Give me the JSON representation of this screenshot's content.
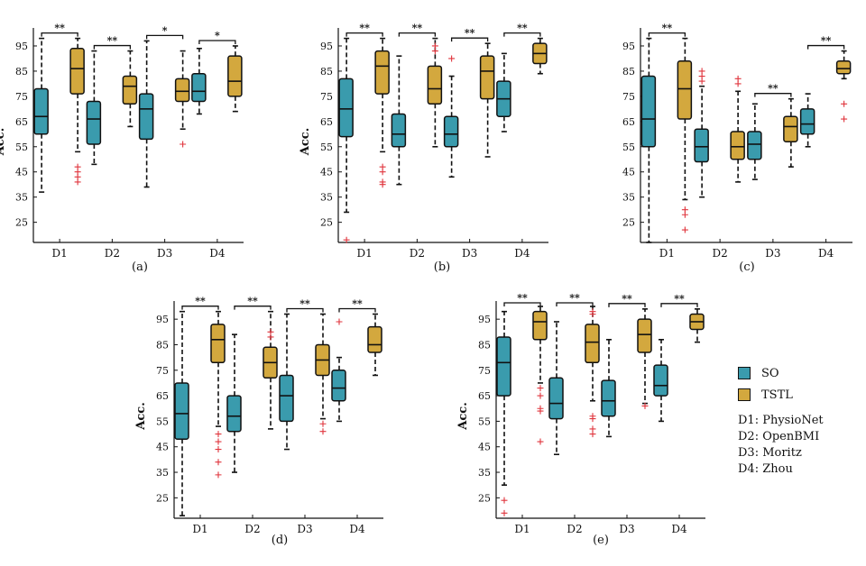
{
  "colors": {
    "so": "#3A9BAD",
    "tstl": "#D3A83E",
    "outlier": "#E0343C",
    "axis": "#111111"
  },
  "legend": {
    "so_label": "SO",
    "tstl_label": "TSTL",
    "dataset_defs": [
      "D1: PhysioNet",
      "D2: OpenBMI",
      "D3: Moritz",
      "D4: Zhou"
    ]
  },
  "chart_data": [
    {
      "type": "box",
      "panel_label": "(a)",
      "ylabel": "Acc.",
      "yticks": [
        25,
        35,
        45,
        55,
        65,
        75,
        85,
        95
      ],
      "ylim": [
        17,
        100
      ],
      "categories": [
        "D1",
        "D2",
        "D3",
        "D4"
      ],
      "significance": [
        "**",
        "**",
        "*",
        "*"
      ],
      "series": [
        {
          "name": "SO",
          "boxes": [
            {
              "min": 37,
              "q1": 60,
              "median": 67,
              "q3": 78,
              "max": 98,
              "outliers": []
            },
            {
              "min": 48,
              "q1": 56,
              "median": 66,
              "q3": 73,
              "max": 93,
              "outliers": []
            },
            {
              "min": 39,
              "q1": 58,
              "median": 70,
              "q3": 76,
              "max": 97,
              "outliers": []
            },
            {
              "min": 68,
              "q1": 73,
              "median": 77,
              "q3": 84,
              "max": 94,
              "outliers": []
            }
          ]
        },
        {
          "name": "TSTL",
          "boxes": [
            {
              "min": 53,
              "q1": 76,
              "median": 86,
              "q3": 94,
              "max": 98,
              "outliers": [
                47,
                45,
                43,
                41
              ]
            },
            {
              "min": 63,
              "q1": 72,
              "median": 79,
              "q3": 83,
              "max": 93,
              "outliers": []
            },
            {
              "min": 62,
              "q1": 73,
              "median": 77,
              "q3": 82,
              "max": 93,
              "outliers": [
                56
              ]
            },
            {
              "min": 69,
              "q1": 75,
              "median": 81,
              "q3": 91,
              "max": 95,
              "outliers": []
            }
          ]
        }
      ]
    },
    {
      "type": "box",
      "panel_label": "(b)",
      "ylabel": "Acc.",
      "yticks": [
        25,
        35,
        45,
        55,
        65,
        75,
        85,
        95
      ],
      "ylim": [
        17,
        100
      ],
      "categories": [
        "D1",
        "D2",
        "D3",
        "D4"
      ],
      "significance": [
        "**",
        "**",
        "**",
        "**"
      ],
      "series": [
        {
          "name": "SO",
          "boxes": [
            {
              "min": 29,
              "q1": 59,
              "median": 70,
              "q3": 82,
              "max": 98,
              "outliers": [
                18
              ]
            },
            {
              "min": 40,
              "q1": 55,
              "median": 60,
              "q3": 68,
              "max": 91,
              "outliers": []
            },
            {
              "min": 43,
              "q1": 55,
              "median": 60,
              "q3": 67,
              "max": 83,
              "outliers": [
                90
              ]
            },
            {
              "min": 61,
              "q1": 67,
              "median": 74,
              "q3": 81,
              "max": 92,
              "outliers": []
            }
          ]
        },
        {
          "name": "TSTL",
          "boxes": [
            {
              "min": 53,
              "q1": 76,
              "median": 87,
              "q3": 93,
              "max": 98,
              "outliers": [
                47,
                45,
                41,
                40
              ]
            },
            {
              "min": 55,
              "q1": 72,
              "median": 78,
              "q3": 87,
              "max": 98,
              "outliers": [
                95,
                93
              ]
            },
            {
              "min": 51,
              "q1": 74,
              "median": 85,
              "q3": 91,
              "max": 96,
              "outliers": []
            },
            {
              "min": 84,
              "q1": 88,
              "median": 92,
              "q3": 96,
              "max": 98,
              "outliers": []
            }
          ]
        }
      ]
    },
    {
      "type": "box",
      "panel_label": "(c)",
      "ylabel": "",
      "yticks": [
        25,
        35,
        45,
        55,
        65,
        75,
        85,
        95
      ],
      "ylim": [
        17,
        100
      ],
      "categories": [
        "D1",
        "D2",
        "D3",
        "D4"
      ],
      "significance": [
        "**",
        "",
        "**",
        "**"
      ],
      "series": [
        {
          "name": "SO",
          "boxes": [
            {
              "min": 17,
              "q1": 55,
              "median": 66,
              "q3": 83,
              "max": 98,
              "outliers": []
            },
            {
              "min": 35,
              "q1": 49,
              "median": 55,
              "q3": 62,
              "max": 79,
              "outliers": [
                85,
                83,
                81
              ]
            },
            {
              "min": 42,
              "q1": 50,
              "median": 56,
              "q3": 61,
              "max": 72,
              "outliers": []
            },
            {
              "min": 55,
              "q1": 60,
              "median": 64,
              "q3": 70,
              "max": 76,
              "outliers": []
            }
          ]
        },
        {
          "name": "TSTL",
          "boxes": [
            {
              "min": 34,
              "q1": 66,
              "median": 78,
              "q3": 89,
              "max": 98,
              "outliers": [
                30,
                28,
                22
              ]
            },
            {
              "min": 41,
              "q1": 50,
              "median": 55,
              "q3": 61,
              "max": 77,
              "outliers": [
                82,
                80
              ]
            },
            {
              "min": 47,
              "q1": 57,
              "median": 63,
              "q3": 67,
              "max": 74,
              "outliers": []
            },
            {
              "min": 82,
              "q1": 84,
              "median": 86,
              "q3": 89,
              "max": 93,
              "outliers": [
                72,
                66
              ]
            }
          ]
        }
      ]
    },
    {
      "type": "box",
      "panel_label": "(d)",
      "ylabel": "Acc.",
      "yticks": [
        25,
        35,
        45,
        55,
        65,
        75,
        85,
        95
      ],
      "ylim": [
        17,
        100
      ],
      "categories": [
        "D1",
        "D2",
        "D3",
        "D4"
      ],
      "significance": [
        "**",
        "**",
        "**",
        "**"
      ],
      "series": [
        {
          "name": "SO",
          "boxes": [
            {
              "min": 18,
              "q1": 48,
              "median": 58,
              "q3": 70,
              "max": 98,
              "outliers": []
            },
            {
              "min": 35,
              "q1": 51,
              "median": 57,
              "q3": 65,
              "max": 89,
              "outliers": []
            },
            {
              "min": 44,
              "q1": 55,
              "median": 65,
              "q3": 73,
              "max": 97,
              "outliers": []
            },
            {
              "min": 55,
              "q1": 63,
              "median": 68,
              "q3": 75,
              "max": 80,
              "outliers": [
                94
              ]
            }
          ]
        },
        {
          "name": "TSTL",
          "boxes": [
            {
              "min": 53,
              "q1": 78,
              "median": 87,
              "q3": 93,
              "max": 98,
              "outliers": [
                50,
                47,
                44,
                39,
                34
              ]
            },
            {
              "min": 52,
              "q1": 72,
              "median": 78,
              "q3": 84,
              "max": 98,
              "outliers": [
                90,
                88
              ]
            },
            {
              "min": 56,
              "q1": 73,
              "median": 79,
              "q3": 85,
              "max": 97,
              "outliers": [
                54,
                51
              ]
            },
            {
              "min": 73,
              "q1": 82,
              "median": 85,
              "q3": 92,
              "max": 97,
              "outliers": []
            }
          ]
        }
      ]
    },
    {
      "type": "box",
      "panel_label": "(e)",
      "ylabel": "Acc.",
      "yticks": [
        25,
        35,
        45,
        55,
        65,
        75,
        85,
        95
      ],
      "ylim": [
        17,
        100
      ],
      "categories": [
        "D1",
        "D2",
        "D3",
        "D4"
      ],
      "significance": [
        "**",
        "**",
        "**",
        "**"
      ],
      "series": [
        {
          "name": "SO",
          "boxes": [
            {
              "min": 30,
              "q1": 65,
              "median": 78,
              "q3": 88,
              "max": 98,
              "outliers": [
                24,
                19
              ]
            },
            {
              "min": 42,
              "q1": 56,
              "median": 62,
              "q3": 72,
              "max": 94,
              "outliers": []
            },
            {
              "min": 49,
              "q1": 57,
              "median": 63,
              "q3": 71,
              "max": 87,
              "outliers": []
            },
            {
              "min": 55,
              "q1": 65,
              "median": 69,
              "q3": 77,
              "max": 87,
              "outliers": []
            }
          ]
        },
        {
          "name": "TSTL",
          "boxes": [
            {
              "min": 70,
              "q1": 87,
              "median": 94,
              "q3": 98,
              "max": 100,
              "outliers": [
                68,
                65,
                60,
                59,
                47
              ]
            },
            {
              "min": 63,
              "q1": 78,
              "median": 86,
              "q3": 93,
              "max": 100,
              "outliers": [
                98,
                97,
                57,
                56,
                52,
                50
              ]
            },
            {
              "min": 62,
              "q1": 82,
              "median": 89,
              "q3": 95,
              "max": 99,
              "outliers": [
                61
              ]
            },
            {
              "min": 86,
              "q1": 91,
              "median": 94,
              "q3": 97,
              "max": 99,
              "outliers": []
            }
          ]
        }
      ]
    }
  ]
}
